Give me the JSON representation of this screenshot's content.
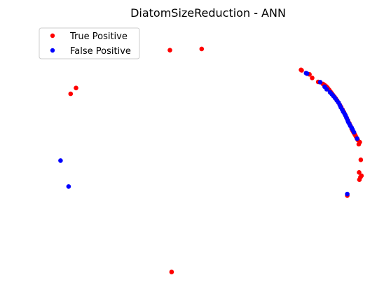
{
  "chart_data": {
    "type": "scatter",
    "title": "DiatomSizeReduction - ANN",
    "xlabel": "",
    "ylabel": "",
    "axes_visible": false,
    "grid": false,
    "legend_position": "top-left",
    "xlim": [
      0,
      1
    ],
    "ylim": [
      0,
      1
    ],
    "series": [
      {
        "name": "True Positive",
        "color": "#ff0000",
        "x": [
          0.387,
          0.481,
          0.093,
          0.109,
          0.392,
          0.775,
          0.777,
          0.8,
          0.808,
          0.826,
          0.84,
          0.845,
          0.85,
          0.854,
          0.858,
          0.862,
          0.866,
          0.87,
          0.874,
          0.878,
          0.882,
          0.886,
          0.89,
          0.894,
          0.898,
          0.902,
          0.906,
          0.91,
          0.914,
          0.918,
          0.922,
          0.925,
          0.928,
          0.931,
          0.934,
          0.937,
          0.94,
          0.943,
          0.949,
          0.946,
          0.952,
          0.947,
          0.951,
          0.954,
          0.948,
          0.912
        ],
        "y": [
          0.912,
          0.917,
          0.739,
          0.762,
          0.032,
          0.834,
          0.832,
          0.816,
          0.802,
          0.786,
          0.778,
          0.773,
          0.768,
          0.762,
          0.755,
          0.748,
          0.741,
          0.734,
          0.727,
          0.72,
          0.712,
          0.704,
          0.695,
          0.686,
          0.676,
          0.666,
          0.655,
          0.644,
          0.633,
          0.622,
          0.611,
          0.6,
          0.592,
          0.585,
          0.578,
          0.571,
          0.563,
          0.556,
          0.547,
          0.539,
          0.477,
          0.427,
          0.408,
          0.414,
          0.398,
          0.335
        ]
      },
      {
        "name": "False Positive",
        "color": "#0000ff",
        "x": [
          0.063,
          0.087,
          0.79,
          0.793,
          0.832,
          0.845,
          0.851,
          0.861,
          0.866,
          0.871,
          0.876,
          0.881,
          0.886,
          0.89,
          0.893,
          0.897,
          0.9,
          0.904,
          0.907,
          0.91,
          0.913,
          0.915,
          0.918,
          0.921,
          0.925,
          0.928,
          0.932,
          0.941,
          0.912
        ],
        "y": [
          0.474,
          0.371,
          0.821,
          0.819,
          0.785,
          0.767,
          0.757,
          0.745,
          0.738,
          0.73,
          0.722,
          0.713,
          0.704,
          0.694,
          0.685,
          0.676,
          0.668,
          0.66,
          0.652,
          0.643,
          0.634,
          0.627,
          0.62,
          0.612,
          0.604,
          0.596,
          0.586,
          0.561,
          0.341
        ]
      }
    ]
  }
}
